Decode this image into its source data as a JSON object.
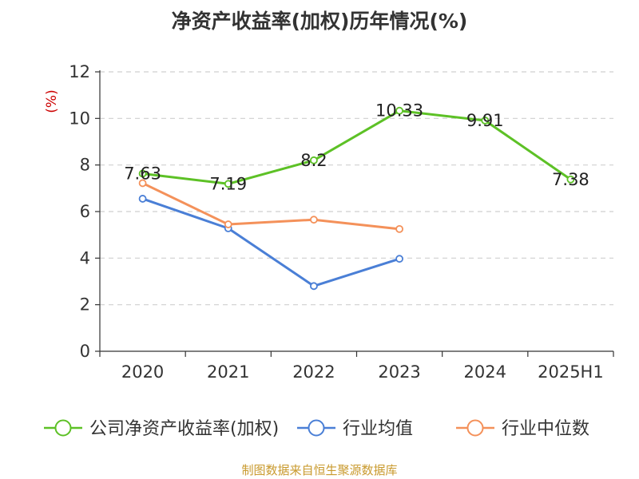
{
  "chart_data": {
    "type": "line",
    "title": "净资产收益率(加权)历年情况(%)",
    "ylabel": "(%)",
    "xlabel": "",
    "categories": [
      "2020",
      "2021",
      "2022",
      "2023",
      "2024",
      "2025H1"
    ],
    "ylim": [
      0,
      12
    ],
    "yticks": [
      0,
      2,
      4,
      6,
      8,
      10,
      12
    ],
    "grid": true,
    "legend_position": "bottom",
    "series": [
      {
        "name": "公司净资产收益率(加权)",
        "color": "#5dc126",
        "values": [
          7.63,
          7.19,
          8.2,
          10.33,
          9.91,
          7.38
        ],
        "labels": [
          "7.63",
          "7.19",
          "8.2",
          "10.33",
          "9.91",
          "7.38"
        ]
      },
      {
        "name": "行业均值",
        "color": "#4a7fd6",
        "values": [
          6.55,
          5.28,
          2.8,
          3.97,
          null,
          null
        ]
      },
      {
        "name": "行业中位数",
        "color": "#f4915a",
        "values": [
          7.22,
          5.45,
          5.65,
          5.25,
          null,
          null
        ]
      }
    ]
  },
  "source": "制图数据来自恒生聚源数据库"
}
